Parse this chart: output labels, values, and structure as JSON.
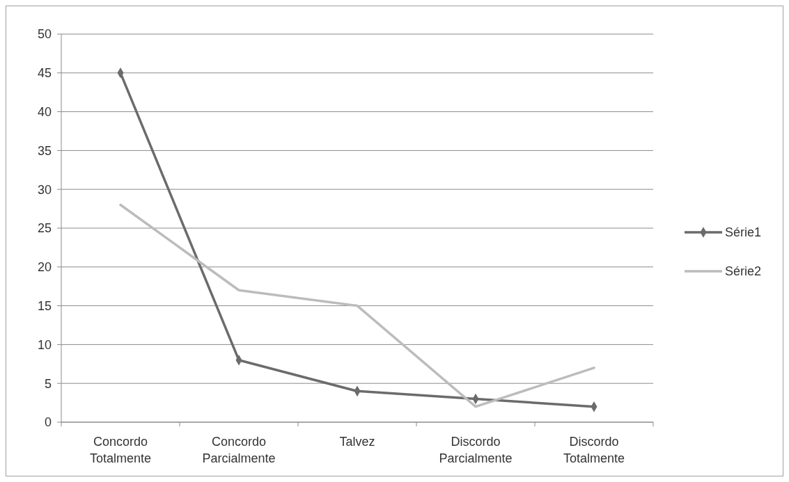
{
  "chart_data": {
    "type": "line",
    "categories": [
      "Concordo Totalmente",
      "Concordo Parcialmente",
      "Talvez",
      "Discordo Parcialmente",
      "Discordo Totalmente"
    ],
    "series": [
      {
        "name": "Série1",
        "color": "#6b6b6b",
        "values": [
          45,
          8,
          4,
          3,
          2
        ],
        "marker": "diamond"
      },
      {
        "name": "Série2",
        "color": "#bcbcbc",
        "values": [
          28,
          17,
          15,
          2,
          7
        ],
        "marker": "none"
      }
    ],
    "ylim": [
      0,
      50
    ],
    "yticks": [
      0,
      5,
      10,
      15,
      20,
      25,
      30,
      35,
      40,
      45,
      50
    ],
    "grid": "y",
    "legend": "right",
    "line_style": "solid"
  }
}
